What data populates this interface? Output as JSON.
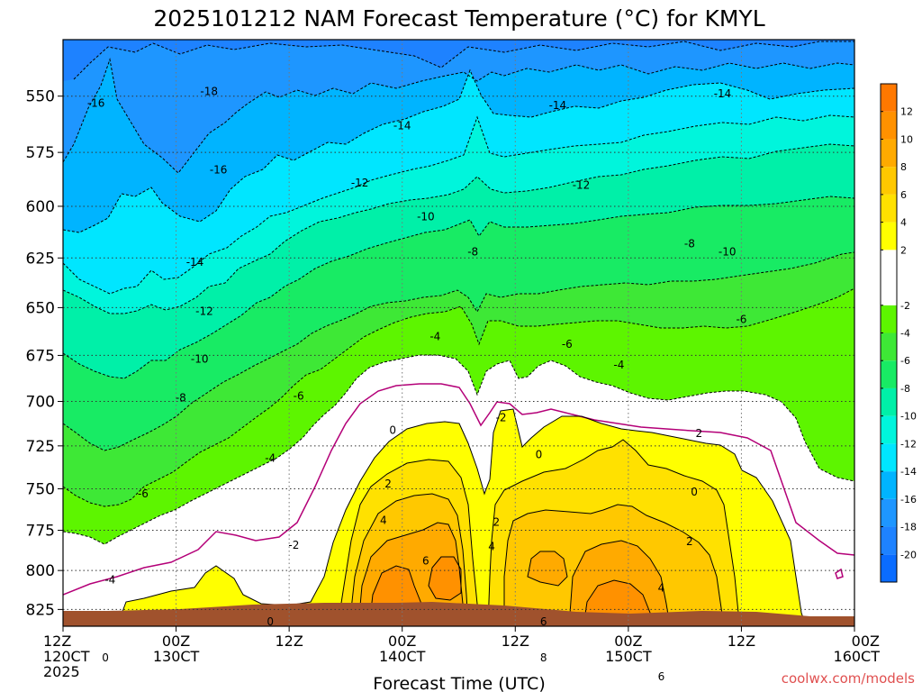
{
  "chart_data": {
    "type": "heatmap",
    "title": "2025101212 NAM Forecast Temperature (°C) for KMYL",
    "xlabel": "Forecast Time (UTC)",
    "ylabel": "",
    "x_ticks": [
      {
        "hour": 0,
        "label": [
          "12Z",
          "120CT",
          "2025"
        ]
      },
      {
        "hour": 12,
        "label": [
          "00Z",
          "130CT"
        ]
      },
      {
        "hour": 24,
        "label": [
          "12Z"
        ]
      },
      {
        "hour": 36,
        "label": [
          "00Z",
          "140CT"
        ]
      },
      {
        "hour": 48,
        "label": [
          "12Z"
        ]
      },
      {
        "hour": 60,
        "label": [
          "00Z",
          "150CT"
        ]
      },
      {
        "hour": 72,
        "label": [
          "12Z"
        ]
      },
      {
        "hour": 84,
        "label": [
          "00Z",
          "160CT"
        ]
      }
    ],
    "xlim": [
      0,
      84
    ],
    "y_ticks": [
      550,
      575,
      600,
      625,
      650,
      675,
      700,
      725,
      750,
      775,
      800,
      825
    ],
    "ylim": [
      526,
      836
    ],
    "y_scale": "log",
    "grid": true,
    "ground_color": "#a0522d",
    "colorbar": {
      "placement": "right",
      "bins": [
        {
          "lo": -22,
          "hi": -20,
          "color": "#0a6cff"
        },
        {
          "lo": -20,
          "hi": -18,
          "color": "#1e82ff"
        },
        {
          "lo": -18,
          "hi": -16,
          "color": "#1e96ff"
        },
        {
          "lo": -16,
          "hi": -14,
          "color": "#00b4ff"
        },
        {
          "lo": -14,
          "hi": -12,
          "color": "#00e6ff"
        },
        {
          "lo": -12,
          "hi": -10,
          "color": "#00f5dc"
        },
        {
          "lo": -10,
          "hi": -8,
          "color": "#00f0a8"
        },
        {
          "lo": -8,
          "hi": -6,
          "color": "#18eb64"
        },
        {
          "lo": -6,
          "hi": -4,
          "color": "#3ee836"
        },
        {
          "lo": -4,
          "hi": -2,
          "color": "#5df500"
        },
        {
          "lo": -2,
          "hi": 2,
          "color": "#ffffff"
        },
        {
          "lo": 2,
          "hi": 4,
          "color": "#ffff00"
        },
        {
          "lo": 4,
          "hi": 6,
          "color": "#ffe100"
        },
        {
          "lo": 6,
          "hi": 8,
          "color": "#ffc800"
        },
        {
          "lo": 8,
          "hi": 10,
          "color": "#ffaa00"
        },
        {
          "lo": 10,
          "hi": 12,
          "color": "#ff9100"
        },
        {
          "lo": 12,
          "hi": 14,
          "color": "#ff7800"
        }
      ],
      "tick_labels": [
        "12",
        "10",
        "8",
        "6",
        "4",
        "2",
        "-2",
        "-4",
        "-6",
        "-8",
        "-10",
        "-12",
        "-14",
        "-16",
        "-18",
        "-20"
      ]
    },
    "contour_labels": [
      {
        "text": "-16",
        "hour": 3.5,
        "p": 553
      },
      {
        "text": "-18",
        "hour": 15.5,
        "p": 548
      },
      {
        "text": "-14",
        "hour": 36,
        "p": 563
      },
      {
        "text": "-14",
        "hour": 52.5,
        "p": 554
      },
      {
        "text": "-14",
        "hour": 70,
        "p": 549
      },
      {
        "text": "-16",
        "hour": 16.5,
        "p": 583
      },
      {
        "text": "-12",
        "hour": 31.5,
        "p": 589
      },
      {
        "text": "-12",
        "hour": 55,
        "p": 590
      },
      {
        "text": "-10",
        "hour": 38.5,
        "p": 605
      },
      {
        "text": "-8",
        "hour": 43.5,
        "p": 622
      },
      {
        "text": "-8",
        "hour": 66.5,
        "p": 618
      },
      {
        "text": "-10",
        "hour": 70.5,
        "p": 622
      },
      {
        "text": "-14",
        "hour": 14,
        "p": 627
      },
      {
        "text": "-12",
        "hour": 15,
        "p": 652
      },
      {
        "text": "-6",
        "hour": 72,
        "p": 656
      },
      {
        "text": "-4",
        "hour": 39.5,
        "p": 665
      },
      {
        "text": "-6",
        "hour": 53.5,
        "p": 669
      },
      {
        "text": "-4",
        "hour": 59,
        "p": 680
      },
      {
        "text": "-10",
        "hour": 14.5,
        "p": 677
      },
      {
        "text": "-8",
        "hour": 12.5,
        "p": 698
      },
      {
        "text": "-6",
        "hour": 25,
        "p": 697
      },
      {
        "text": "-2",
        "hour": 46.5,
        "p": 709
      },
      {
        "text": "0",
        "hour": 35,
        "p": 716
      },
      {
        "text": "2",
        "hour": 67.5,
        "p": 718
      },
      {
        "text": "0",
        "hour": 50.5,
        "p": 730
      },
      {
        "text": "-4",
        "hour": 22,
        "p": 732
      },
      {
        "text": "-6",
        "hour": 8.5,
        "p": 753
      },
      {
        "text": "0",
        "hour": 67,
        "p": 752
      },
      {
        "text": "2",
        "hour": 34.5,
        "p": 747
      },
      {
        "text": "2",
        "hour": 46,
        "p": 770
      },
      {
        "text": "-2",
        "hour": 24.5,
        "p": 784
      },
      {
        "text": "4",
        "hour": 34,
        "p": 769
      },
      {
        "text": "2",
        "hour": 66.5,
        "p": 782
      },
      {
        "text": "4",
        "hour": 45.5,
        "p": 785
      },
      {
        "text": "6",
        "hour": 38.5,
        "p": 794
      },
      {
        "text": "-4",
        "hour": 5,
        "p": 806
      },
      {
        "text": "4",
        "hour": 63.5,
        "p": 811
      },
      {
        "text": "0",
        "hour": 22,
        "p": 833
      },
      {
        "text": "6",
        "hour": 51,
        "p": 833
      },
      {
        "text": "8",
        "hour": 51,
        "p": 857
      },
      {
        "text": "0",
        "hour": 4.5,
        "p": 857
      },
      {
        "text": "6",
        "hour": 63.5,
        "p": 870
      }
    ]
  },
  "credit": "coolwx.com/models"
}
